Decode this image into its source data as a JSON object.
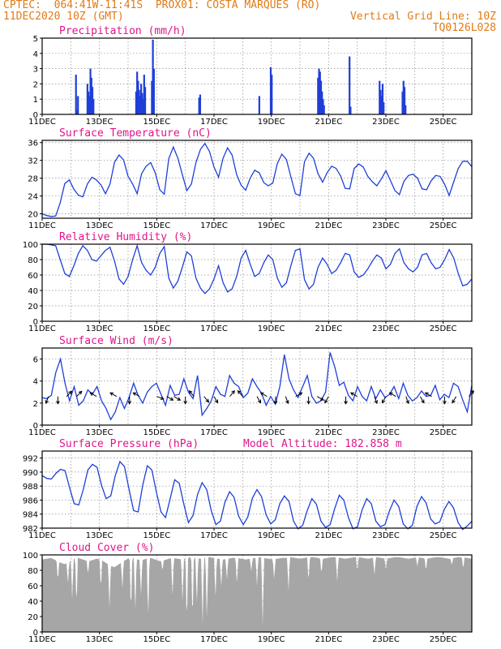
{
  "header": {
    "line1_left": "CPTEC:  064:41W-11:41S  PROX01: COSTA MARQUES (RO)",
    "line2_left": "11DEC2020 10Z (GMT)",
    "line2_right": "Vertical Grid Line: 10Z",
    "line3_right": "TQ0126L028"
  },
  "colors": {
    "header": "#e07b16",
    "title": "#e0158a",
    "line": "#1f3fd8",
    "cloud": "#a6a6a6",
    "wind_arrow": "#000000"
  },
  "x_axis": {
    "tick_labels": [
      "11DEC",
      "13DEC",
      "15DEC",
      "17DEC",
      "19DEC",
      "21DEC",
      "23DEC",
      "25DEC"
    ],
    "tick_days": [
      0,
      2,
      4,
      6,
      8,
      10,
      12,
      14
    ],
    "range_days": [
      0,
      15
    ],
    "grid": "vertical at 10Z each day"
  },
  "chart_data": [
    {
      "id": "precip",
      "type": "bar",
      "title": "Precipitation (mm/h)",
      "ylim": [
        0,
        5
      ],
      "yticks": [
        0,
        1,
        2,
        3,
        4,
        5
      ],
      "events": [
        {
          "start_day": 1.15,
          "peaks": [
            2.6,
            0.3,
            1.2
          ]
        },
        {
          "start_day": 1.55,
          "peaks": [
            2.0,
            1.5,
            1.2,
            3.0,
            2.4,
            1.8,
            1.0
          ]
        },
        {
          "start_day": 3.25,
          "peaks": [
            1.5,
            2.8,
            2.2,
            1.6,
            1.2,
            2.0,
            1.4,
            1.0,
            2.6,
            1.8
          ]
        },
        {
          "start_day": 3.8,
          "peaks": [
            2.2,
            4.9,
            3.0
          ]
        },
        {
          "start_day": 5.45,
          "peaks": [
            1.1,
            1.3
          ]
        },
        {
          "start_day": 7.55,
          "peaks": [
            1.2
          ]
        },
        {
          "start_day": 7.95,
          "peaks": [
            3.1,
            2.6
          ]
        },
        {
          "start_day": 9.6,
          "peaks": [
            2.4,
            3.0,
            2.8,
            2.2,
            1.5,
            1.0,
            0.6
          ]
        },
        {
          "start_day": 10.7,
          "peaks": [
            3.8,
            0.5
          ]
        },
        {
          "start_day": 11.75,
          "peaks": [
            2.2,
            1.6,
            1.2,
            2.0,
            0.8
          ]
        },
        {
          "start_day": 12.55,
          "peaks": [
            1.5,
            2.2,
            1.8,
            0.6
          ]
        }
      ]
    },
    {
      "id": "temp",
      "type": "line",
      "title": "Surface Temperature (nC)",
      "ylim": [
        19,
        36.5
      ],
      "yticks": [
        20,
        24,
        28,
        32,
        36
      ],
      "y": [
        20,
        19.6,
        19.4,
        19.5,
        22.5,
        26.8,
        27.6,
        25.5,
        24.2,
        23.8,
        26.7,
        28.2,
        27.6,
        26.5,
        24.5,
        26.7,
        31.6,
        33.2,
        32.1,
        28.4,
        26.7,
        24.5,
        29,
        30.7,
        31.5,
        29.2,
        25.4,
        24.4,
        32.4,
        35,
        32.5,
        28.8,
        25.2,
        26.7,
        31.5,
        34.5,
        35.8,
        34,
        30.5,
        28.2,
        32.5,
        34.8,
        33.2,
        28.8,
        26.4,
        25.3,
        28,
        29.8,
        29.2,
        27,
        26.3,
        26.9,
        31.3,
        33.4,
        32.2,
        28.3,
        24.5,
        24.1,
        31.7,
        33.6,
        32.5,
        29,
        27.1,
        29.2,
        30.7,
        30.2,
        28.5,
        25.7,
        25.6,
        30.2,
        31.2,
        30.5,
        28.4,
        27.2,
        26.3,
        27.8,
        29.7,
        27.5,
        25.2,
        24.3,
        27.3,
        28.6,
        28.9,
        28,
        25.6,
        25.4,
        27.4,
        28.6,
        28.4,
        26.6,
        24.1,
        27.2,
        30.2,
        31.8,
        31.8,
        30.6
      ]
    },
    {
      "id": "rh",
      "type": "line",
      "title": "Relative Humidity (%)",
      "ylim": [
        0,
        100
      ],
      "yticks": [
        0,
        20,
        40,
        60,
        80,
        100
      ],
      "y": [
        100,
        100,
        99,
        98,
        80,
        62,
        58,
        72,
        88,
        98,
        92,
        80,
        78,
        85,
        92,
        96,
        78,
        55,
        48,
        58,
        80,
        98,
        76,
        66,
        60,
        70,
        88,
        97,
        56,
        43,
        52,
        70,
        90,
        85,
        56,
        43,
        36,
        42,
        55,
        72,
        50,
        38,
        42,
        58,
        82,
        92,
        74,
        58,
        62,
        76,
        86,
        80,
        56,
        44,
        50,
        72,
        92,
        94,
        54,
        42,
        48,
        70,
        82,
        74,
        62,
        66,
        76,
        88,
        86,
        64,
        57,
        60,
        68,
        78,
        86,
        82,
        68,
        74,
        88,
        94,
        76,
        68,
        64,
        70,
        86,
        88,
        76,
        68,
        70,
        80,
        93,
        82,
        62,
        46,
        48,
        55
      ]
    },
    {
      "id": "wind",
      "type": "line",
      "title": "Surface Wind (m/s)",
      "ylim": [
        0,
        7
      ],
      "yticks": [
        0,
        2,
        4,
        6
      ],
      "y": [
        2.5,
        2.4,
        2.7,
        4.8,
        6,
        3.8,
        2.2,
        3.5,
        1.8,
        2.2,
        3.2,
        2.8,
        3.5,
        2.2,
        1.5,
        0.5,
        1.2,
        2.5,
        1.5,
        2.5,
        3.8,
        2.7,
        2,
        3,
        3.5,
        3.8,
        2.8,
        1.8,
        3.6,
        2.7,
        2.8,
        4.2,
        3,
        2.4,
        4.5,
        0.9,
        1.5,
        2.2,
        3.5,
        2.8,
        2.6,
        4.5,
        3.8,
        3.5,
        2.5,
        2.9,
        4.2,
        3.5,
        2.9,
        1.8,
        2.6,
        1.9,
        3.5,
        6.4,
        4.2,
        3.2,
        2.5,
        3.5,
        4.5,
        2.6,
        2,
        2.2,
        3,
        6.6,
        5.3,
        3.6,
        3.9,
        2.7,
        2.2,
        3.5,
        2.6,
        2.2,
        3.5,
        2.4,
        3.2,
        2.5,
        2.8,
        3.5,
        2.4,
        3.8,
        2.7,
        2.2,
        2.5,
        3.1,
        2.6,
        2.7,
        3.6,
        2.3,
        2.8,
        2.5,
        3.8,
        3.5,
        2.3,
        1.2,
        3.6
      ],
      "barbs": [
        {
          "day": 0.22,
          "dir_deg": 200
        },
        {
          "day": 0.55,
          "dir_deg": 180
        },
        {
          "day": 0.85,
          "dir_deg": 45
        },
        {
          "day": 1.2,
          "dir_deg": 45
        },
        {
          "day": 1.9,
          "dir_deg": 300
        },
        {
          "day": 2.6,
          "dir_deg": 300
        },
        {
          "day": 3.05,
          "dir_deg": 180
        },
        {
          "day": 3.4,
          "dir_deg": 300
        },
        {
          "day": 4.0,
          "dir_deg": 110
        },
        {
          "day": 4.35,
          "dir_deg": 120
        },
        {
          "day": 4.6,
          "dir_deg": 120
        },
        {
          "day": 5.0,
          "dir_deg": 180
        },
        {
          "day": 5.3,
          "dir_deg": 320
        },
        {
          "day": 5.65,
          "dir_deg": 140
        },
        {
          "day": 6.0,
          "dir_deg": 150
        },
        {
          "day": 6.55,
          "dir_deg": 40
        },
        {
          "day": 7.0,
          "dir_deg": 320
        },
        {
          "day": 7.5,
          "dir_deg": 150
        },
        {
          "day": 7.85,
          "dir_deg": 300
        },
        {
          "day": 8.15,
          "dir_deg": 180
        },
        {
          "day": 8.5,
          "dir_deg": 160
        },
        {
          "day": 8.85,
          "dir_deg": 60
        },
        {
          "day": 9.3,
          "dir_deg": 180
        },
        {
          "day": 9.6,
          "dir_deg": 120
        },
        {
          "day": 10.0,
          "dir_deg": 210
        },
        {
          "day": 10.6,
          "dir_deg": 180
        },
        {
          "day": 11.0,
          "dir_deg": 300
        },
        {
          "day": 11.6,
          "dir_deg": 160
        },
        {
          "day": 12.0,
          "dir_deg": 210
        },
        {
          "day": 12.35,
          "dir_deg": 300
        },
        {
          "day": 12.7,
          "dir_deg": 160
        },
        {
          "day": 13.2,
          "dir_deg": 150
        },
        {
          "day": 13.6,
          "dir_deg": 300
        },
        {
          "day": 14.05,
          "dir_deg": 180
        },
        {
          "day": 14.45,
          "dir_deg": 210
        },
        {
          "day": 14.9,
          "dir_deg": 40
        }
      ]
    },
    {
      "id": "pres",
      "type": "line",
      "title": "Surface Pressure (hPa)",
      "annotation": "Model Altitude: 182.858  m",
      "ylim": [
        982,
        993
      ],
      "yticks": [
        982,
        984,
        986,
        988,
        990,
        992
      ],
      "y": [
        989.5,
        989.1,
        989,
        989.8,
        990.4,
        990.2,
        987.8,
        985.5,
        985.3,
        987.5,
        990.3,
        991.1,
        990.7,
        988.1,
        986.2,
        986.6,
        989.5,
        991.5,
        990.8,
        987.6,
        984.5,
        984.3,
        988.1,
        990.9,
        990.3,
        987.1,
        984.3,
        983.5,
        986.2,
        988.9,
        988.4,
        985.4,
        982.8,
        983.8,
        986.8,
        988.5,
        987.5,
        984.5,
        982.5,
        983,
        985.7,
        987.2,
        986.4,
        983.7,
        982.5,
        983.6,
        986.3,
        987.5,
        986.5,
        983.9,
        982.6,
        983.2,
        985.5,
        986.6,
        985.8,
        983,
        981.9,
        982.4,
        984.5,
        986.2,
        985.4,
        983,
        982.1,
        982.5,
        984.8,
        986.7,
        986,
        983.5,
        981.9,
        982.2,
        984.6,
        986.2,
        985.5,
        983,
        982.2,
        982.5,
        984.5,
        986,
        985.1,
        982.6,
        981.9,
        982.4,
        985.1,
        986.5,
        985.6,
        983.3,
        982.6,
        982.9,
        984.7,
        985.8,
        984.9,
        982.8,
        981.8,
        982.3,
        983
      ]
    },
    {
      "id": "cloud",
      "type": "bar",
      "title": "Cloud Cover (%)",
      "ylim": [
        0,
        100
      ],
      "yticks": [
        0,
        20,
        40,
        60,
        80,
        100
      ],
      "base": [
        94,
        95,
        96,
        93,
        90,
        88,
        91,
        95,
        96,
        94,
        92,
        93,
        95,
        94,
        90,
        86,
        84,
        88,
        92,
        95,
        96,
        94,
        93,
        95,
        96,
        94,
        92,
        93,
        95,
        96,
        95,
        94,
        96,
        97,
        96,
        95,
        96,
        97,
        96,
        95,
        94,
        95,
        96,
        96,
        95,
        94,
        95,
        96,
        97,
        96,
        95,
        94,
        95,
        96,
        96,
        97,
        96,
        95,
        96,
        97,
        97,
        96,
        95,
        96,
        97,
        97,
        96,
        95,
        96,
        97,
        97,
        96,
        95,
        96,
        97,
        96,
        95,
        96,
        97,
        97,
        96,
        95,
        96,
        97,
        96,
        95,
        96,
        97,
        97,
        96,
        95,
        96,
        97,
        97,
        96,
        95
      ],
      "dips": [
        {
          "day": 0.55,
          "value": 64
        },
        {
          "day": 0.9,
          "value": 60
        },
        {
          "day": 1.05,
          "value": 40
        },
        {
          "day": 1.2,
          "value": 28
        },
        {
          "day": 1.6,
          "value": 72
        },
        {
          "day": 2.05,
          "value": 52
        },
        {
          "day": 2.35,
          "value": 30
        },
        {
          "day": 2.8,
          "value": 55
        },
        {
          "day": 3.1,
          "value": 18
        },
        {
          "day": 3.25,
          "value": 22
        },
        {
          "day": 3.45,
          "value": 45
        },
        {
          "day": 3.7,
          "value": 10
        },
        {
          "day": 4.2,
          "value": 78
        },
        {
          "day": 4.55,
          "value": 40
        },
        {
          "day": 4.9,
          "value": 35
        },
        {
          "day": 5.05,
          "value": 2
        },
        {
          "day": 5.25,
          "value": 6
        },
        {
          "day": 5.4,
          "value": 30
        },
        {
          "day": 5.6,
          "value": 3
        },
        {
          "day": 5.75,
          "value": 10
        },
        {
          "day": 6.05,
          "value": 38
        },
        {
          "day": 6.25,
          "value": 55
        },
        {
          "day": 6.45,
          "value": 66
        },
        {
          "day": 6.8,
          "value": 58
        },
        {
          "day": 7.3,
          "value": 78
        },
        {
          "day": 7.5,
          "value": 60
        },
        {
          "day": 7.7,
          "value": 4
        },
        {
          "day": 8.1,
          "value": 66
        },
        {
          "day": 8.6,
          "value": 50
        },
        {
          "day": 9.3,
          "value": 62
        },
        {
          "day": 9.75,
          "value": 72
        },
        {
          "day": 10.3,
          "value": 64
        },
        {
          "day": 11.0,
          "value": 76
        },
        {
          "day": 11.6,
          "value": 72
        },
        {
          "day": 12.0,
          "value": 80
        },
        {
          "day": 13.1,
          "value": 84
        },
        {
          "day": 13.4,
          "value": 78
        },
        {
          "day": 14.3,
          "value": 86
        },
        {
          "day": 14.7,
          "value": 80
        }
      ]
    }
  ]
}
